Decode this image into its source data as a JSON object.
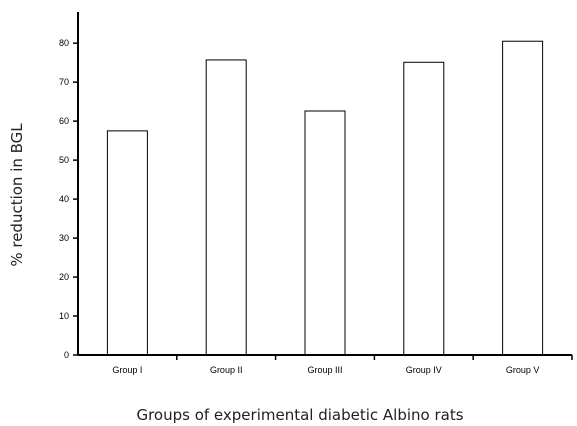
{
  "chart_data": {
    "type": "bar",
    "title": "",
    "xlabel": "Groups of experimental diabetic Albino rats",
    "ylabel": "% reduction in BGL",
    "categories": [
      "Group I",
      "Group II",
      "Group III",
      "Group IV",
      "Group V"
    ],
    "values": [
      57.5,
      75.7,
      62.6,
      75.1,
      80.5
    ],
    "ylim": [
      0,
      88
    ],
    "yticks": [
      0,
      10,
      20,
      30,
      40,
      50,
      60,
      70,
      80
    ],
    "grid": false,
    "legend": "none",
    "colors": {
      "bar_fill": "#ffffff",
      "bar_stroke": "#000000",
      "axis": "#000000"
    }
  }
}
